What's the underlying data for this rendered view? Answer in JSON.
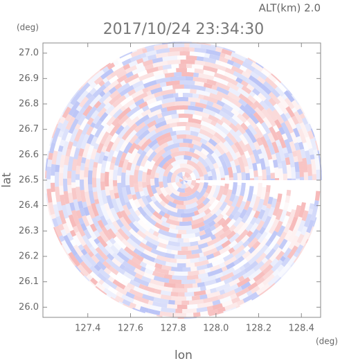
{
  "chart_data": {
    "type": "ppi",
    "title": "2017/10/24 23:34:30",
    "annotation": "ALT(km) 2.0",
    "x_label": "lon",
    "y_label": "lat",
    "x_unit": "(deg)",
    "y_unit": "(deg)",
    "xlim": [
      127.19,
      128.49
    ],
    "ylim": [
      25.96,
      27.04
    ],
    "xticks": [
      127.4,
      127.6,
      127.8,
      {
        "value": 128,
        "label": "128.0"
      },
      128.2,
      128.4
    ],
    "yticks": [
      {
        "value": 26,
        "label": "26.0"
      },
      26.1,
      26.2,
      26.3,
      26.4,
      26.5,
      26.6,
      26.7,
      26.8,
      26.9,
      {
        "value": 27,
        "label": "27.0"
      }
    ],
    "colors": [
      "#f4a6a6",
      "#a8b4f4"
    ]
  }
}
